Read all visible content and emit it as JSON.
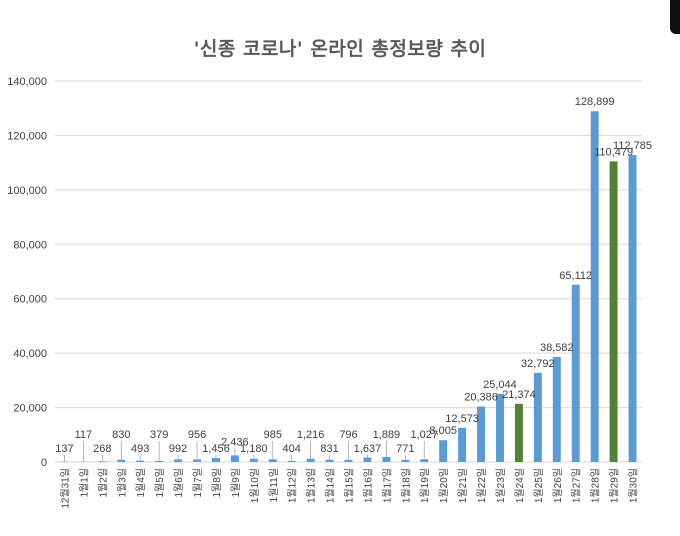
{
  "chart_data": {
    "type": "bar",
    "title": "'신종 코로나' 온라인 총정보량 추이",
    "categories": [
      "12월31일",
      "1월1일",
      "1월2일",
      "1월3일",
      "1월4일",
      "1월5일",
      "1월6일",
      "1월7일",
      "1월8일",
      "1월9일",
      "1월10일",
      "1월11일",
      "1월12일",
      "1월13일",
      "1월14일",
      "1월15일",
      "1월16일",
      "1월17일",
      "1월18일",
      "1월19일",
      "1월20일",
      "1월21일",
      "1월22일",
      "1월23일",
      "1월24일",
      "1월25일",
      "1월26일",
      "1월27일",
      "1월28일",
      "1월29일",
      "1월30일"
    ],
    "values": [
      137,
      117,
      268,
      830,
      493,
      379,
      992,
      956,
      1456,
      2436,
      1180,
      985,
      404,
      1216,
      831,
      796,
      1637,
      1889,
      771,
      1027,
      8005,
      12573,
      20386,
      25044,
      21374,
      32792,
      38582,
      65112,
      128899,
      110479,
      112785
    ],
    "data_labels": [
      "137",
      "117",
      "268",
      "830",
      "493",
      "379",
      "992",
      "956",
      "1,456",
      "2,436",
      "1,180",
      "985",
      "404",
      "1,216",
      "831",
      "796",
      "1,637",
      "1,889",
      "771",
      "1,027",
      "8,005",
      "12,573",
      "20,386",
      "25,044",
      "21,374",
      "32,792",
      "38,582",
      "65,112",
      "128,899",
      "110,479",
      "112,785"
    ],
    "highlight_indices": [
      24,
      29
    ],
    "ylim": [
      0,
      140000
    ],
    "yticks": [
      0,
      20000,
      40000,
      60000,
      80000,
      100000,
      120000,
      140000
    ],
    "ytick_labels": [
      "0",
      "20,000",
      "40,000",
      "60,000",
      "80,000",
      "100,000",
      "120,000",
      "140,000"
    ],
    "grid": true,
    "colors": {
      "bar": "#5B9BD5",
      "highlight": "#548235",
      "grid": "#D9D9D9",
      "text": "#404040"
    }
  }
}
